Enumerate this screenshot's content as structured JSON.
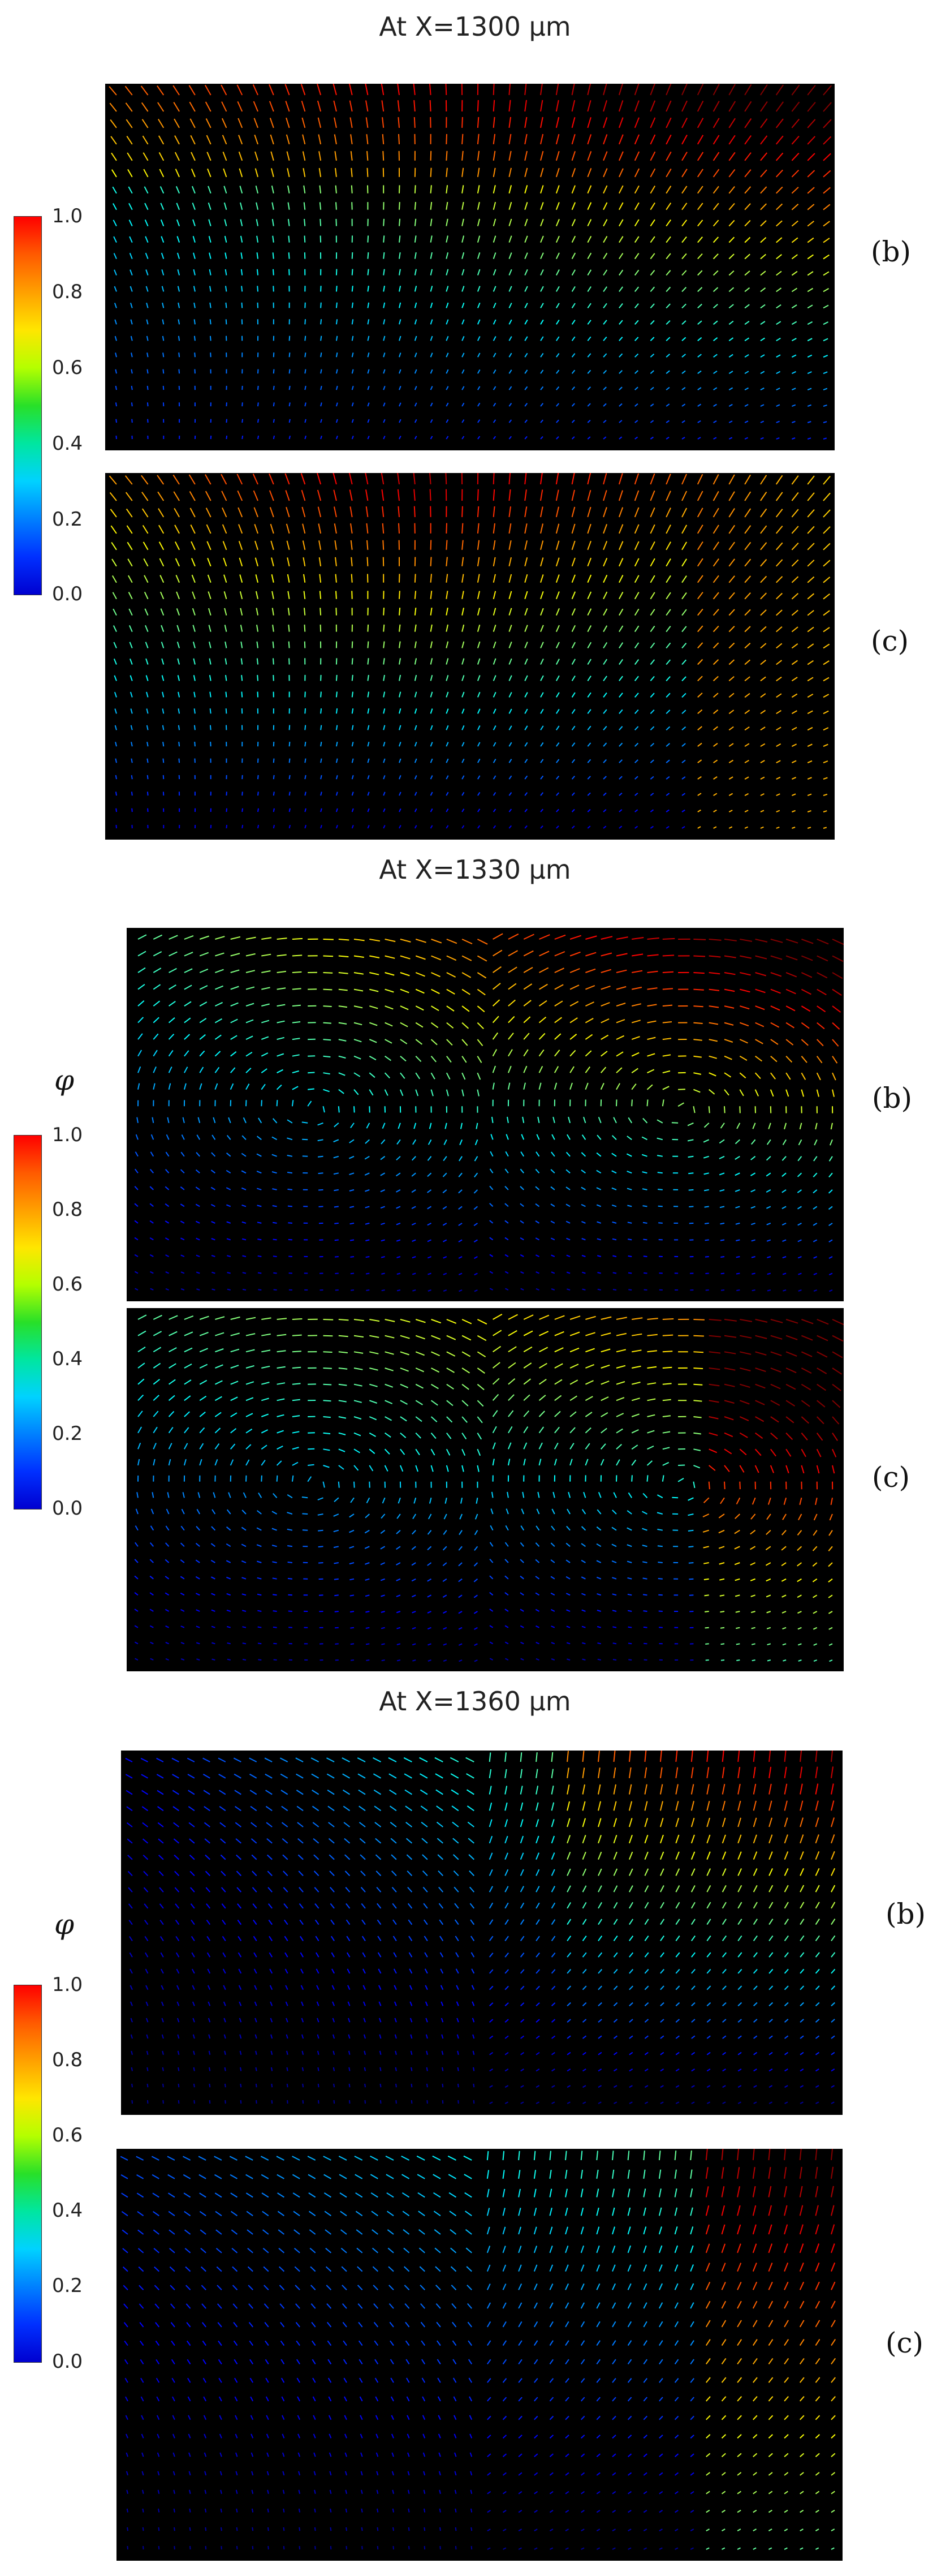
{
  "sections": [
    {
      "title": "At X=1300 μm"
    },
    {
      "title": "At X=1330 μm"
    },
    {
      "title": "At X=1360 μm"
    }
  ],
  "colorbar": {
    "symbol": "φ",
    "ticks": [
      "1.0",
      "0.8",
      "0.6",
      "0.4",
      "0.2",
      "0.0"
    ],
    "range": [
      0.0,
      1.0
    ],
    "colormap": "jet"
  },
  "panel_labels": {
    "b": "(b)",
    "c": "(c)"
  },
  "panels": [
    {
      "section": 0,
      "label": "(b)",
      "content": "velocity vectors colored by φ"
    },
    {
      "section": 0,
      "label": "(c)",
      "content": "velocity vectors colored by φ"
    },
    {
      "section": 1,
      "label": "(b)",
      "content": "velocity vectors colored by φ"
    },
    {
      "section": 1,
      "label": "(c)",
      "content": "velocity vectors colored by φ"
    },
    {
      "section": 2,
      "label": "(b)",
      "content": "velocity vectors colored by φ"
    },
    {
      "section": 2,
      "label": "(c)",
      "content": "velocity vectors colored by φ"
    }
  ],
  "colors": {
    "panel_background": "#000000"
  }
}
